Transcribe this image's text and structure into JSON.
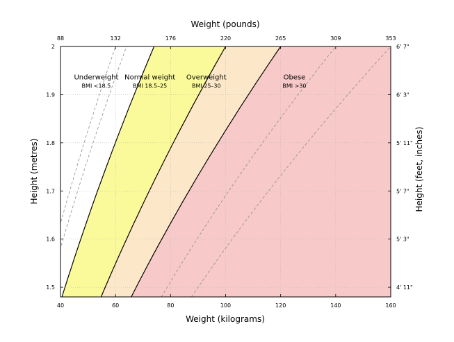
{
  "chart_data": {
    "type": "area",
    "title": "",
    "xlabel": "Weight (kilograms)",
    "ylabel": "Height (metres)",
    "x2label": "Weight (pounds)",
    "y2label": "Height (feet, inches)",
    "xlim": [
      40,
      160
    ],
    "ylim": [
      1.48,
      2.0
    ],
    "x_ticks": [
      "40",
      "60",
      "80",
      "100",
      "120",
      "140",
      "160"
    ],
    "y_ticks": [
      "1.5",
      "1.6",
      "1.7",
      "1.8",
      "1.9",
      "2"
    ],
    "x2_ticks": [
      "88",
      "132",
      "176",
      "220",
      "265",
      "309",
      "353"
    ],
    "y2_ticks": [
      "4' 11\"",
      "5' 3\"",
      "5' 7\"",
      "5' 11\"",
      "6' 3\"",
      "6' 7\""
    ],
    "grid": true,
    "bmi_lines": [
      {
        "bmi": 15,
        "style": "dashed"
      },
      {
        "bmi": 16,
        "style": "dashed"
      },
      {
        "bmi": 18.5,
        "style": "solid"
      },
      {
        "bmi": 25,
        "style": "solid"
      },
      {
        "bmi": 30,
        "style": "solid"
      },
      {
        "bmi": 35,
        "style": "dashed"
      },
      {
        "bmi": 40,
        "style": "dashed"
      }
    ],
    "regions": [
      {
        "name": "Underweight",
        "range": "BMI <18.5",
        "bmi_from": 0,
        "bmi_to": 18.5,
        "color": "#ffffff",
        "label_x": 53,
        "label_y": 1.93
      },
      {
        "name": "Normal weight",
        "range": "BMI 18.5–25",
        "bmi_from": 18.5,
        "bmi_to": 25,
        "color": "#fafa9a",
        "label_x": 72.5,
        "label_y": 1.93
      },
      {
        "name": "Overweight",
        "range": "BMI 25–30",
        "bmi_from": 25,
        "bmi_to": 30,
        "color": "#fce8c8",
        "label_x": 93,
        "label_y": 1.93
      },
      {
        "name": "Obese",
        "range": "BMI >30",
        "bmi_from": 30,
        "bmi_to": 1000,
        "color": "#f7cac9",
        "label_x": 125,
        "label_y": 1.93
      }
    ]
  }
}
